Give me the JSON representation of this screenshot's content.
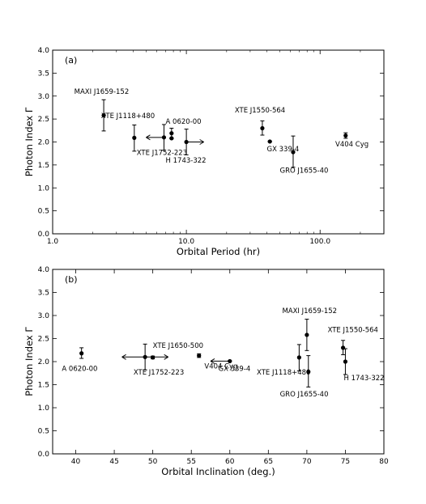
{
  "chart_data": [
    {
      "type": "scatter",
      "panel_label": "(a)",
      "xlabel": "Orbital Period (hr)",
      "ylabel": "Photon Index Γ",
      "xscale": "log",
      "xlim": [
        1.0,
        300.0
      ],
      "ylim": [
        0.0,
        4.0
      ],
      "xticks": [
        {
          "v": 1,
          "label": "1.0"
        },
        {
          "v": 10,
          "label": "10.0"
        },
        {
          "v": 100,
          "label": "100.0"
        }
      ],
      "yticks": [
        {
          "v": 0.0,
          "label": "0.0"
        },
        {
          "v": 0.5,
          "label": "0.5"
        },
        {
          "v": 1.0,
          "label": "1.0"
        },
        {
          "v": 1.5,
          "label": "1.5"
        },
        {
          "v": 2.0,
          "label": "2.0"
        },
        {
          "v": 2.5,
          "label": "2.5"
        },
        {
          "v": 3.0,
          "label": "3.0"
        },
        {
          "v": 3.5,
          "label": "3.5"
        },
        {
          "v": 4.0,
          "label": "4.0"
        }
      ],
      "points": [
        {
          "name": "MAXI J1659-152",
          "x": 2.41,
          "y": 2.58,
          "ylo": 2.24,
          "yhi": 2.92,
          "label_at": [
            1.45,
            3.05
          ],
          "anchor": "start"
        },
        {
          "name": "XTE J1118+480",
          "x": 4.08,
          "y": 2.09,
          "ylo": 1.8,
          "yhi": 2.37,
          "label_at": [
            2.3,
            2.52
          ],
          "anchor": "start"
        },
        {
          "name": "A 0620-00",
          "x": 7.75,
          "y": 2.19,
          "ylo": 2.08,
          "yhi": 2.3,
          "label_at": [
            7.0,
            2.4
          ],
          "anchor": "start"
        },
        {
          "name": "",
          "x": 7.75,
          "y": 2.08,
          "ylo": 2.07,
          "yhi": 2.09
        },
        {
          "name": "XTE J1752-223",
          "x": 6.8,
          "y": 2.1,
          "ylo": 1.82,
          "yhi": 2.38,
          "xarrow_left": 5.0,
          "label_at": [
            4.25,
            1.72
          ],
          "anchor": "start"
        },
        {
          "name": "H 1743-322",
          "x": 10.0,
          "y": 2.0,
          "ylo": 1.72,
          "yhi": 2.28,
          "xarrow_right": 13.5,
          "label_at": [
            7.0,
            1.55
          ],
          "anchor": "start"
        },
        {
          "name": "XTE J1550-564",
          "x": 37.0,
          "y": 2.3,
          "ylo": 2.15,
          "yhi": 2.46,
          "label_at": [
            23.0,
            2.64
          ],
          "anchor": "start"
        },
        {
          "name": "GX 339-4",
          "x": 42.1,
          "y": 2.01,
          "ylo": 2.0,
          "yhi": 2.02,
          "label_at": [
            40.0,
            1.8
          ],
          "anchor": "start"
        },
        {
          "name": "GRO J1655-40",
          "x": 62.9,
          "y": 1.78,
          "ylo": 1.45,
          "yhi": 2.13,
          "label_at": [
            50.0,
            1.33
          ],
          "anchor": "start"
        },
        {
          "name": "V404 Cyg",
          "x": 155.3,
          "y": 2.14,
          "ylo": 2.08,
          "yhi": 2.2,
          "label_at": [
            130.0,
            1.9
          ],
          "anchor": "start"
        }
      ]
    },
    {
      "type": "scatter",
      "panel_label": "(b)",
      "xlabel": "Orbital Inclination (deg.)",
      "ylabel": "Photon Index Γ",
      "xscale": "linear",
      "xlim": [
        37.0,
        80.0
      ],
      "ylim": [
        0.0,
        4.0
      ],
      "xticks": [
        {
          "v": 40,
          "label": "40"
        },
        {
          "v": 45,
          "label": "45"
        },
        {
          "v": 50,
          "label": "50"
        },
        {
          "v": 55,
          "label": "55"
        },
        {
          "v": 60,
          "label": "60"
        },
        {
          "v": 65,
          "label": "65"
        },
        {
          "v": 70,
          "label": "70"
        },
        {
          "v": 75,
          "label": "75"
        },
        {
          "v": 80,
          "label": "80"
        }
      ],
      "yticks": [
        {
          "v": 0.0,
          "label": "0.0"
        },
        {
          "v": 0.5,
          "label": "0.5"
        },
        {
          "v": 1.0,
          "label": "1.0"
        },
        {
          "v": 1.5,
          "label": "1.5"
        },
        {
          "v": 2.0,
          "label": "2.0"
        },
        {
          "v": 2.5,
          "label": "2.5"
        },
        {
          "v": 3.0,
          "label": "3.0"
        },
        {
          "v": 3.5,
          "label": "3.5"
        },
        {
          "v": 4.0,
          "label": "4.0"
        }
      ],
      "points": [
        {
          "name": "A 0620-00",
          "x": 40.75,
          "y": 2.18,
          "ylo": 2.07,
          "yhi": 2.3,
          "label_at": [
            38.2,
            1.8
          ],
          "anchor": "start"
        },
        {
          "name": "XTE J1752-223",
          "x": 49.0,
          "y": 2.1,
          "ylo": 1.82,
          "yhi": 2.38,
          "xarrow_left": 46.0,
          "xarrow_right": 52.0,
          "label_at": [
            47.5,
            1.72
          ],
          "anchor": "start"
        },
        {
          "name": "XTE J1650-500",
          "x": 50.0,
          "y": 2.09,
          "ylo": 2.06,
          "yhi": 2.12,
          "label_at": [
            50.0,
            2.3
          ],
          "anchor": "start"
        },
        {
          "name": "V404 Cyg",
          "x": 56.0,
          "y": 2.13,
          "ylo": 2.09,
          "yhi": 2.17,
          "label_at": [
            56.7,
            1.85
          ],
          "anchor": "start"
        },
        {
          "name": "GX 339-4",
          "x": 60.0,
          "y": 2.01,
          "ylo": 2.0,
          "yhi": 2.02,
          "xarrow_left": 57.5,
          "label_at": [
            58.5,
            1.8
          ],
          "anchor": "start"
        },
        {
          "name": "XTE J1118+480",
          "x": 69.0,
          "y": 2.09,
          "ylo": 1.8,
          "yhi": 2.37,
          "label_at": [
            63.5,
            1.72
          ],
          "anchor": "start"
        },
        {
          "name": "MAXI J1659-152",
          "x": 70.0,
          "y": 2.58,
          "ylo": 2.24,
          "yhi": 2.92,
          "label_at": [
            66.8,
            3.05
          ],
          "anchor": "start"
        },
        {
          "name": "GRO J1655-40",
          "x": 70.2,
          "y": 1.78,
          "ylo": 1.45,
          "yhi": 2.13,
          "label_at": [
            66.5,
            1.25
          ],
          "anchor": "start"
        },
        {
          "name": "XTE J1550-564",
          "x": 74.7,
          "y": 2.3,
          "ylo": 2.15,
          "yhi": 2.46,
          "label_at": [
            72.7,
            2.64
          ],
          "anchor": "start"
        },
        {
          "name": "H 1743-322",
          "x": 75.0,
          "y": 2.0,
          "ylo": 1.72,
          "yhi": 2.28,
          "label_at": [
            74.8,
            1.6
          ],
          "anchor": "start"
        }
      ]
    }
  ]
}
